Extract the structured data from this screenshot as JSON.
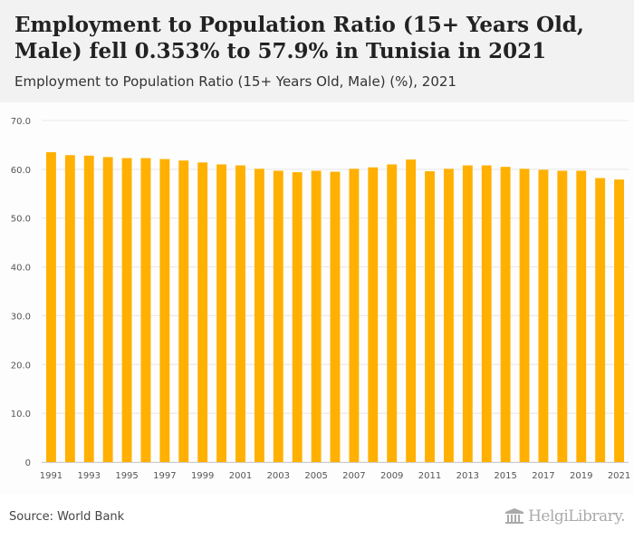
{
  "header": {
    "title": "Employment to Population Ratio (15+ Years Old, Male) fell 0.353% to 57.9% in Tunisia in 2021",
    "subtitle": "Employment to Population Ratio (15+ Years Old, Male) (%), 2021"
  },
  "footer": {
    "source": "Source: World Bank",
    "logo_text": "HelgiLibrary."
  },
  "colors": {
    "bar": "#FFB000",
    "grid": "#e6e6e6",
    "axis_text": "#555555"
  },
  "chart_data": {
    "type": "bar",
    "title": "Employment to Population Ratio (15+ Years Old, Male) (%), 2021",
    "xlabel": "",
    "ylabel": "",
    "ylim": [
      0,
      70
    ],
    "grid": true,
    "y_ticks": [
      "0",
      "10.0",
      "20.0",
      "30.0",
      "40.0",
      "50.0",
      "60.0",
      "70.0"
    ],
    "categories": [
      "1991",
      "1992",
      "1993",
      "1994",
      "1995",
      "1996",
      "1997",
      "1998",
      "1999",
      "2000",
      "2001",
      "2002",
      "2003",
      "2004",
      "2005",
      "2006",
      "2007",
      "2008",
      "2009",
      "2010",
      "2011",
      "2012",
      "2013",
      "2014",
      "2015",
      "2016",
      "2017",
      "2018",
      "2019",
      "2020",
      "2021"
    ],
    "x_tick_labels": [
      "1991",
      "",
      "1993",
      "",
      "1995",
      "",
      "1997",
      "",
      "1999",
      "",
      "2001",
      "",
      "2003",
      "",
      "2005",
      "",
      "2007",
      "",
      "2009",
      "",
      "2011",
      "",
      "2013",
      "",
      "2015",
      "",
      "2017",
      "",
      "2019",
      "",
      "2021"
    ],
    "values": [
      63.5,
      62.9,
      62.8,
      62.5,
      62.3,
      62.3,
      62.1,
      61.8,
      61.4,
      61.0,
      60.8,
      60.1,
      59.7,
      59.4,
      59.7,
      59.5,
      60.1,
      60.4,
      61.0,
      62.0,
      59.6,
      60.1,
      60.8,
      60.8,
      60.5,
      60.1,
      59.9,
      59.7,
      59.7,
      58.2,
      57.9
    ]
  }
}
